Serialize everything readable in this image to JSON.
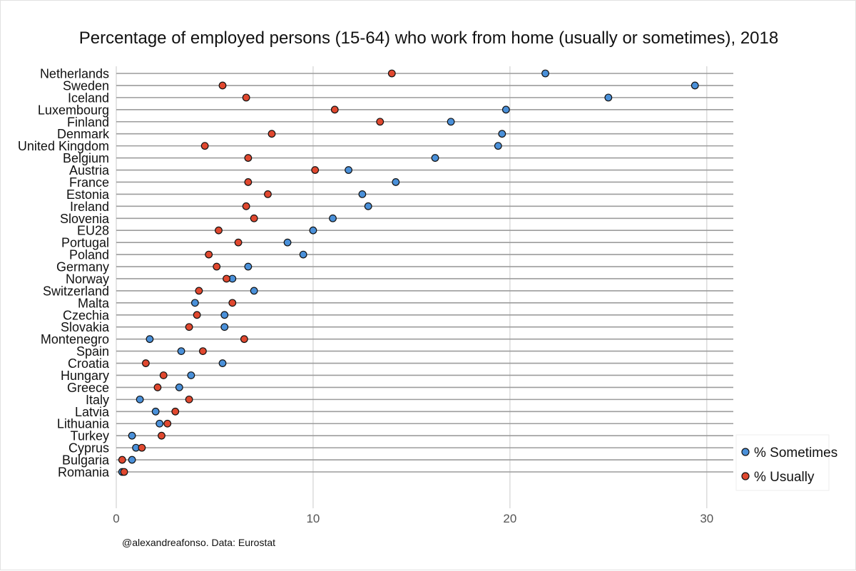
{
  "chart_data": {
    "type": "scatter",
    "title": "Percentage of employed persons (15-64) who work from home (usually or sometimes), 2018",
    "caption": "@alexandreafonso. Data: Eurostat",
    "xlabel": "",
    "ylabel": "",
    "xlim": [
      0,
      31.5
    ],
    "xticks": [
      "0",
      "10",
      "20",
      "30"
    ],
    "grid": true,
    "legend_position": "bottom-right",
    "categories": [
      "Netherlands",
      "Sweden",
      "Iceland",
      "Luxembourg",
      "Finland",
      "Denmark",
      "United Kingdom",
      "Belgium",
      "Austria",
      "France",
      "Estonia",
      "Ireland",
      "Slovenia",
      "EU28",
      "Portugal",
      "Poland",
      "Germany",
      "Norway",
      "Switzerland",
      "Malta",
      "Czechia",
      "Slovakia",
      "Montenegro",
      "Spain",
      "Croatia",
      "Hungary",
      "Greece",
      "Italy",
      "Latvia",
      "Lithuania",
      "Turkey",
      "Cyprus",
      "Bulgaria",
      "Romania"
    ],
    "series": [
      {
        "name": "% Sometimes",
        "color": "#4a90d9",
        "values": [
          21.8,
          29.4,
          25.0,
          19.8,
          17.0,
          19.6,
          19.4,
          16.2,
          11.8,
          14.2,
          12.5,
          12.8,
          11.0,
          10.0,
          8.7,
          9.5,
          6.7,
          5.9,
          7.0,
          4.0,
          5.5,
          5.5,
          1.7,
          3.3,
          5.4,
          3.8,
          3.2,
          1.2,
          2.0,
          2.2,
          0.8,
          1.0,
          0.8,
          0.3
        ]
      },
      {
        "name": "% Usually",
        "color": "#e0482f",
        "values": [
          14.0,
          5.4,
          6.6,
          11.1,
          13.4,
          7.9,
          4.5,
          6.7,
          10.1,
          6.7,
          7.7,
          6.6,
          7.0,
          5.2,
          6.2,
          4.7,
          5.1,
          5.6,
          4.2,
          5.9,
          4.1,
          3.7,
          6.5,
          4.4,
          1.5,
          2.4,
          2.1,
          3.7,
          3.0,
          2.6,
          2.3,
          1.3,
          0.3,
          0.4
        ]
      }
    ]
  }
}
